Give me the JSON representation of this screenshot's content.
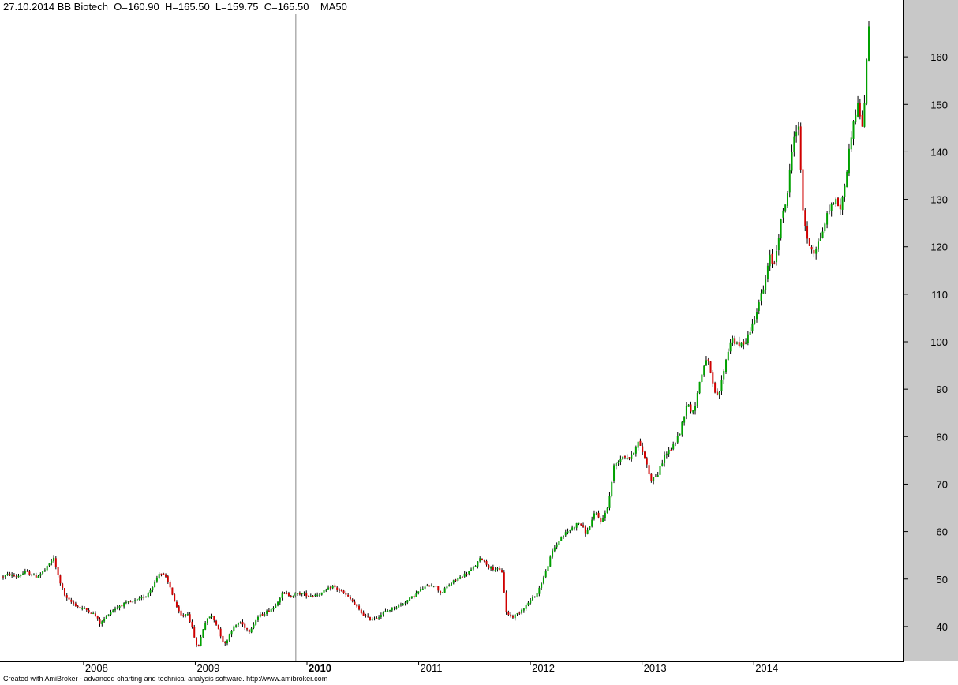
{
  "header": {
    "date": "27.10.2014",
    "symbol": "BB Biotech",
    "ohlc": "O=160.90  H=165.50  L=159.75  C=165.50",
    "indicator": "MA50"
  },
  "footer": {
    "credit": "Created with AmiBroker - advanced charting and technical analysis software. http://www.amibroker.com"
  },
  "colors": {
    "up_candle": "#00a000",
    "down_candle": "#d00000",
    "wick": "#000000",
    "axis_panel": "#c8c8c8",
    "background": "#ffffff"
  },
  "chart_data": {
    "type": "candlestick",
    "title": "BB Biotech",
    "ylim": [
      33,
      169
    ],
    "y_ticks": [
      40,
      50,
      60,
      70,
      80,
      90,
      100,
      110,
      120,
      130,
      140,
      150,
      160
    ],
    "x_labels": [
      "2008",
      "2009",
      "2010",
      "2011",
      "2012",
      "2013",
      "2014"
    ],
    "x_label_positions": [
      2007.72,
      2008.72,
      2009.72,
      2010.72,
      2011.72,
      2012.72,
      2013.72
    ],
    "x_range": [
      2007.0,
      2014.75
    ],
    "highlighted_label": "2010",
    "cursor_date": 2009.62,
    "price_path": [
      [
        2007.0,
        50.5
      ],
      [
        2007.05,
        51.0
      ],
      [
        2007.12,
        50.5
      ],
      [
        2007.2,
        51.5
      ],
      [
        2007.3,
        50.5
      ],
      [
        2007.38,
        52.0
      ],
      [
        2007.45,
        54.5
      ],
      [
        2007.5,
        50.0
      ],
      [
        2007.56,
        46.0
      ],
      [
        2007.62,
        45.0
      ],
      [
        2007.68,
        44.0
      ],
      [
        2007.75,
        43.5
      ],
      [
        2007.82,
        42.5
      ],
      [
        2007.87,
        40.5
      ],
      [
        2007.95,
        43.0
      ],
      [
        2008.05,
        44.5
      ],
      [
        2008.12,
        45.0
      ],
      [
        2008.2,
        45.5
      ],
      [
        2008.28,
        46.5
      ],
      [
        2008.35,
        49.0
      ],
      [
        2008.4,
        51.5
      ],
      [
        2008.45,
        50.5
      ],
      [
        2008.5,
        48.0
      ],
      [
        2008.55,
        44.0
      ],
      [
        2008.6,
        42.0
      ],
      [
        2008.65,
        43.0
      ],
      [
        2008.7,
        39.0
      ],
      [
        2008.74,
        35.0
      ],
      [
        2008.8,
        40.5
      ],
      [
        2008.86,
        42.5
      ],
      [
        2008.92,
        40.0
      ],
      [
        2008.98,
        36.0
      ],
      [
        2009.05,
        39.5
      ],
      [
        2009.12,
        41.0
      ],
      [
        2009.2,
        39.0
      ],
      [
        2009.28,
        42.0
      ],
      [
        2009.35,
        43.0
      ],
      [
        2009.42,
        44.0
      ],
      [
        2009.5,
        47.0
      ],
      [
        2009.58,
        46.5
      ],
      [
        2009.66,
        47.0
      ],
      [
        2009.75,
        46.5
      ],
      [
        2009.85,
        47.0
      ],
      [
        2009.95,
        48.5
      ],
      [
        2010.05,
        47.0
      ],
      [
        2010.12,
        45.5
      ],
      [
        2010.2,
        43.0
      ],
      [
        2010.28,
        41.5
      ],
      [
        2010.35,
        42.0
      ],
      [
        2010.45,
        43.5
      ],
      [
        2010.55,
        44.5
      ],
      [
        2010.65,
        46.0
      ],
      [
        2010.75,
        48.0
      ],
      [
        2010.85,
        49.0
      ],
      [
        2010.92,
        47.0
      ],
      [
        2011.0,
        49.0
      ],
      [
        2011.1,
        50.5
      ],
      [
        2011.2,
        52.0
      ],
      [
        2011.28,
        54.5
      ],
      [
        2011.35,
        52.5
      ],
      [
        2011.42,
        52.0
      ],
      [
        2011.47,
        51.5
      ],
      [
        2011.5,
        43.0
      ],
      [
        2011.56,
        42.0
      ],
      [
        2011.62,
        43.0
      ],
      [
        2011.7,
        45.0
      ],
      [
        2011.78,
        47.0
      ],
      [
        2011.85,
        51.0
      ],
      [
        2011.92,
        56.0
      ],
      [
        2012.0,
        59.0
      ],
      [
        2012.08,
        60.5
      ],
      [
        2012.16,
        62.0
      ],
      [
        2012.22,
        59.5
      ],
      [
        2012.3,
        64.0
      ],
      [
        2012.36,
        62.0
      ],
      [
        2012.42,
        66.0
      ],
      [
        2012.47,
        74.0
      ],
      [
        2012.55,
        76.0
      ],
      [
        2012.62,
        75.5
      ],
      [
        2012.68,
        79.0
      ],
      [
        2012.74,
        76.0
      ],
      [
        2012.8,
        71.0
      ],
      [
        2012.86,
        72.0
      ],
      [
        2012.92,
        76.0
      ],
      [
        2013.0,
        78.0
      ],
      [
        2013.06,
        81.0
      ],
      [
        2013.12,
        87.0
      ],
      [
        2013.18,
        85.0
      ],
      [
        2013.24,
        92.0
      ],
      [
        2013.3,
        97.0
      ],
      [
        2013.36,
        90.0
      ],
      [
        2013.4,
        88.0
      ],
      [
        2013.46,
        95.0
      ],
      [
        2013.52,
        101.0
      ],
      [
        2013.58,
        99.0
      ],
      [
        2013.64,
        100.0
      ],
      [
        2013.7,
        103.0
      ],
      [
        2013.76,
        108.0
      ],
      [
        2013.82,
        112.0
      ],
      [
        2013.86,
        118.0
      ],
      [
        2013.9,
        116.0
      ],
      [
        2013.96,
        125.0
      ],
      [
        2014.02,
        131.0
      ],
      [
        2014.08,
        144.0
      ],
      [
        2014.12,
        145.0
      ],
      [
        2014.16,
        128.0
      ],
      [
        2014.2,
        121.0
      ],
      [
        2014.26,
        119.0
      ],
      [
        2014.32,
        122.0
      ],
      [
        2014.38,
        127.0
      ],
      [
        2014.44,
        130.0
      ],
      [
        2014.5,
        128.0
      ],
      [
        2014.54,
        134.0
      ],
      [
        2014.6,
        145.0
      ],
      [
        2014.65,
        150.0
      ],
      [
        2014.68,
        147.0
      ],
      [
        2014.7,
        144.0
      ],
      [
        2014.73,
        160.0
      ],
      [
        2014.75,
        165.5
      ]
    ]
  }
}
